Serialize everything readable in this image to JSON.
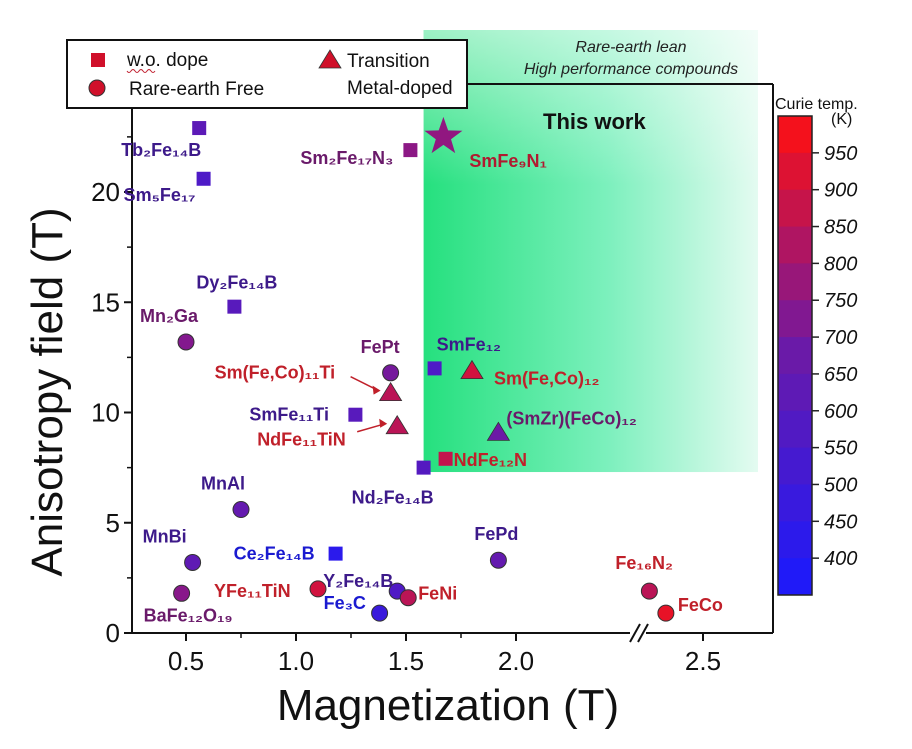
{
  "chart_data": {
    "type": "scatter",
    "title": "",
    "xlabel": "Magnetization (T)",
    "ylabel": "Anisotropy field (T)",
    "xlim": [
      0.25,
      2.75
    ],
    "x_break": {
      "from": 2.1,
      "to": 2.2
    },
    "ylim": [
      0,
      24
    ],
    "x_ticks": [
      0.5,
      1.0,
      1.5,
      2.0,
      2.5
    ],
    "x_tick_labels": [
      "0.5",
      "1.0",
      "1.5",
      "2.0",
      "2.5"
    ],
    "y_ticks": [
      0,
      5,
      10,
      15,
      20
    ],
    "y_tick_labels": [
      "0",
      "5",
      "10",
      "15",
      "20"
    ],
    "grid": false,
    "legend": {
      "placement": "top-left",
      "entries": [
        {
          "marker": "square",
          "label": "w.o. dope"
        },
        {
          "marker": "circle",
          "label": "Rare-earth Free"
        },
        {
          "marker": "triangle",
          "label": "Transition Metal-doped",
          "label_lines": [
            "Transition",
            "Metal-doped"
          ]
        }
      ]
    },
    "highlight_region": {
      "label_lines": [
        "Rare-earth lean",
        "High performance compounds"
      ],
      "x_range": [
        1.58,
        2.75
      ],
      "y_range": [
        7.3,
        27
      ],
      "color": "#2ee58a"
    },
    "colorbar": {
      "title_lines": [
        "Curie temp.",
        "(K)"
      ],
      "range": [
        350,
        1000
      ],
      "ticks": [
        400,
        450,
        500,
        550,
        600,
        650,
        700,
        750,
        800,
        850,
        900,
        950
      ],
      "tick_labels": [
        "400",
        "450",
        "500",
        "550",
        "600",
        "650",
        "700",
        "750",
        "800",
        "850",
        "900",
        "950"
      ],
      "low_color": "#1a1aff",
      "mid_color": "#6a1aa8",
      "high_color": "#ff1010"
    },
    "points": [
      {
        "name": "Tb2Fe14B",
        "label": "Tb₂Fe₁₄B",
        "x": 0.56,
        "y": 22.9,
        "marker": "square",
        "curie_K": 620
      },
      {
        "name": "Sm5Fe17",
        "label": "Sm₅Fe₁₇",
        "x": 0.58,
        "y": 20.6,
        "marker": "square",
        "curie_K": 560
      },
      {
        "name": "Sm2Fe17N3",
        "label": "Sm₂Fe₁₇N₃",
        "x": 1.52,
        "y": 21.9,
        "marker": "square",
        "curie_K": 750
      },
      {
        "name": "SmFe9N1",
        "label": "SmFe₉N₁",
        "x": 1.67,
        "y": 22.5,
        "marker": "star",
        "curie_K": 760,
        "annotation": "This work"
      },
      {
        "name": "Dy2Fe14B",
        "label": "Dy₂Fe₁₄B",
        "x": 0.72,
        "y": 14.8,
        "marker": "square",
        "curie_K": 600
      },
      {
        "name": "Mn2Ga",
        "label": "Mn₂Ga",
        "x": 0.5,
        "y": 13.2,
        "marker": "circle",
        "curie_K": 730
      },
      {
        "name": "FePt",
        "label": "FePt",
        "x": 1.43,
        "y": 11.8,
        "marker": "circle",
        "curie_K": 700
      },
      {
        "name": "Sm(Fe,Co)11Ti",
        "label": "Sm(Fe,Co)₁₁Ti",
        "x": 1.43,
        "y": 10.9,
        "marker": "triangle",
        "curie_K": 850
      },
      {
        "name": "SmFe11Ti",
        "label": "SmFe₁₁Ti",
        "x": 1.27,
        "y": 9.9,
        "marker": "square",
        "curie_K": 600
      },
      {
        "name": "NdFe11TiN",
        "label": "NdFe₁₁TiN",
        "x": 1.46,
        "y": 9.4,
        "marker": "triangle",
        "curie_K": 850
      },
      {
        "name": "SmFe12",
        "label": "SmFe₁₂",
        "x": 1.63,
        "y": 12.0,
        "marker": "square",
        "curie_K": 560
      },
      {
        "name": "Sm(Fe,Co)12",
        "label": "Sm(Fe,Co)₁₂",
        "x": 1.8,
        "y": 11.9,
        "marker": "triangle",
        "curie_K": 900
      },
      {
        "name": "(SmZr)(FeCo)12",
        "label": "(SmZr)(FeCo)₁₂",
        "x": 1.92,
        "y": 9.1,
        "marker": "triangle",
        "curie_K": 680
      },
      {
        "name": "NdFe12N",
        "label": "NdFe₁₂N",
        "x": 1.68,
        "y": 7.9,
        "marker": "square",
        "curie_K": 870
      },
      {
        "name": "Nd2Fe14B",
        "label": "Nd₂Fe₁₄B",
        "x": 1.58,
        "y": 7.5,
        "marker": "square",
        "curie_K": 585
      },
      {
        "name": "MnAl",
        "label": "MnAl",
        "x": 0.75,
        "y": 5.6,
        "marker": "circle",
        "curie_K": 650
      },
      {
        "name": "MnBi",
        "label": "MnBi",
        "x": 0.53,
        "y": 3.2,
        "marker": "circle",
        "curie_K": 630
      },
      {
        "name": "Ce2Fe14B",
        "label": "Ce₂Fe₁₄B",
        "x": 1.18,
        "y": 3.6,
        "marker": "square",
        "curie_K": 420
      },
      {
        "name": "BaFe12O19",
        "label": "BaFe₁₂O₁₉",
        "x": 0.48,
        "y": 1.8,
        "marker": "circle",
        "curie_K": 740
      },
      {
        "name": "YFe11TiN",
        "label": "YFe₁₁TiN",
        "x": 1.1,
        "y": 2.0,
        "marker": "circle",
        "curie_K": 900
      },
      {
        "name": "Y2Fe14B",
        "label": "Y₂Fe₁₄B",
        "x": 1.46,
        "y": 1.9,
        "marker": "circle",
        "curie_K": 565
      },
      {
        "name": "FeNi",
        "label": "FeNi",
        "x": 1.51,
        "y": 1.6,
        "marker": "circle",
        "curie_K": 850
      },
      {
        "name": "Fe3C",
        "label": "Fe₃C",
        "x": 1.38,
        "y": 0.9,
        "marker": "circle",
        "curie_K": 480
      },
      {
        "name": "FePd",
        "label": "FePd",
        "x": 1.92,
        "y": 3.3,
        "marker": "circle",
        "curie_K": 650
      },
      {
        "name": "Fe16N2",
        "label": "Fe₁₆N₂",
        "x": 2.37,
        "y": 1.9,
        "marker": "circle",
        "curie_K": 850
      },
      {
        "name": "FeCo",
        "label": "FeCo",
        "x": 2.41,
        "y": 0.9,
        "marker": "circle",
        "curie_K": 950
      }
    ]
  }
}
